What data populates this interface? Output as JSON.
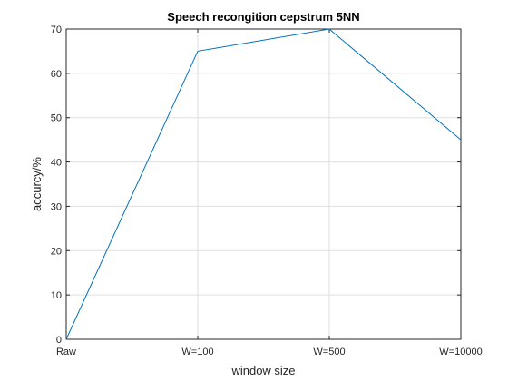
{
  "chart_data": {
    "type": "line",
    "title": "Speech recongition cepstrum 5NN",
    "xlabel": "window size",
    "ylabel": "accurcy/%",
    "categories": [
      "Raw",
      "W=100",
      "W=500",
      "W=10000"
    ],
    "series": [
      {
        "values": [
          0,
          65,
          70,
          45
        ]
      }
    ],
    "ylim": [
      0,
      70
    ],
    "yticks": [
      0,
      10,
      20,
      30,
      40,
      50,
      60,
      70
    ],
    "grid": true,
    "colors": {
      "line": "#0072BD",
      "grid": "#dfdfdf",
      "axis": "#262626"
    }
  }
}
